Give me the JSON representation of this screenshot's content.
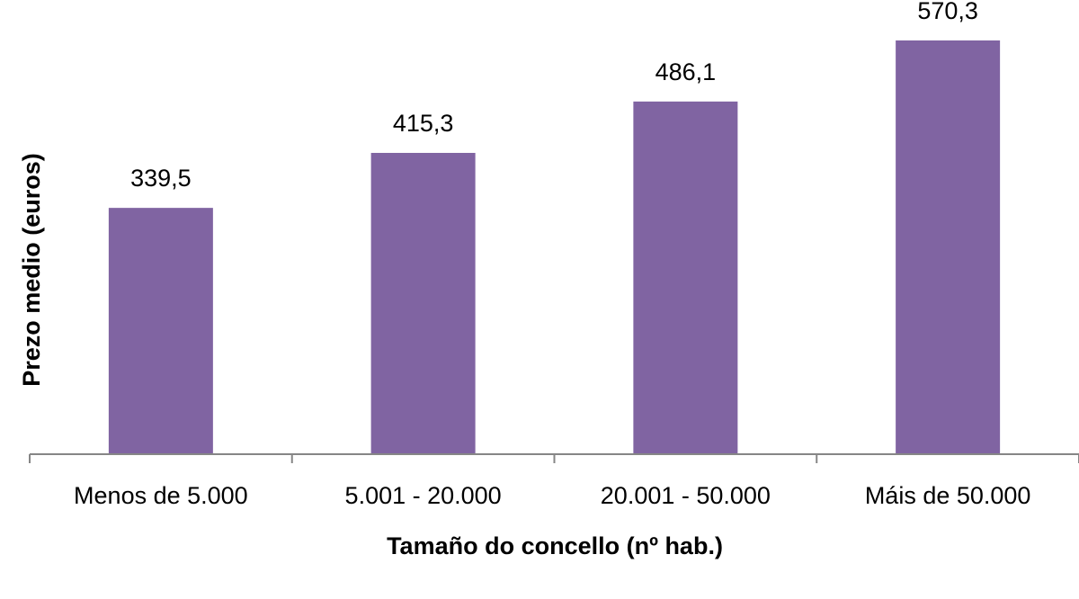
{
  "chart_data": {
    "type": "bar",
    "title": "",
    "xlabel": "Tamaño do concello (nº hab.)",
    "ylabel": "Prezo medio (euros)",
    "categories": [
      "Menos de 5.000",
      "5.001 - 20.000",
      "20.001 - 50.000",
      "Máis de 50.000"
    ],
    "values": [
      339.5,
      415.3,
      486.1,
      570.3
    ],
    "data_labels": [
      "339,5",
      "415,3",
      "486,1",
      "570,3"
    ],
    "ylim": [
      0,
      600
    ],
    "grid": false,
    "legend": "none",
    "colors": {
      "bar": "#8064A2",
      "axis": "#868686",
      "text": "#000000"
    }
  }
}
